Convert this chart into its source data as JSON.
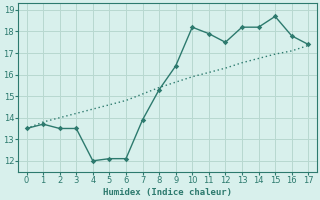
{
  "line1_x": [
    0,
    1,
    2,
    3,
    4,
    5,
    6,
    7,
    8,
    9,
    10,
    11,
    12,
    13,
    14,
    15,
    16,
    17
  ],
  "line1_y": [
    13.5,
    13.7,
    13.5,
    13.5,
    12.0,
    12.1,
    12.1,
    13.9,
    15.3,
    16.4,
    18.2,
    17.9,
    17.5,
    18.2,
    18.2,
    18.7,
    17.8,
    17.4
  ],
  "line2_x": [
    0,
    1,
    2,
    3,
    4,
    5,
    6,
    7,
    8,
    9,
    10,
    11,
    12,
    13,
    14,
    15,
    16,
    17
  ],
  "line2_y": [
    13.5,
    13.8,
    14.0,
    14.2,
    14.4,
    14.6,
    14.8,
    15.1,
    15.4,
    15.65,
    15.9,
    16.1,
    16.3,
    16.55,
    16.75,
    16.95,
    17.1,
    17.35
  ],
  "color": "#2d7a6e",
  "bg_color": "#d8f0ec",
  "grid_color": "#b8d8d0",
  "xlabel": "Humidex (Indice chaleur)",
  "xlim": [
    -0.5,
    17.5
  ],
  "ylim": [
    11.5,
    19.3
  ],
  "yticks": [
    12,
    13,
    14,
    15,
    16,
    17,
    18,
    19
  ],
  "xticks": [
    0,
    1,
    2,
    3,
    4,
    5,
    6,
    7,
    8,
    9,
    10,
    11,
    12,
    13,
    14,
    15,
    16,
    17
  ]
}
